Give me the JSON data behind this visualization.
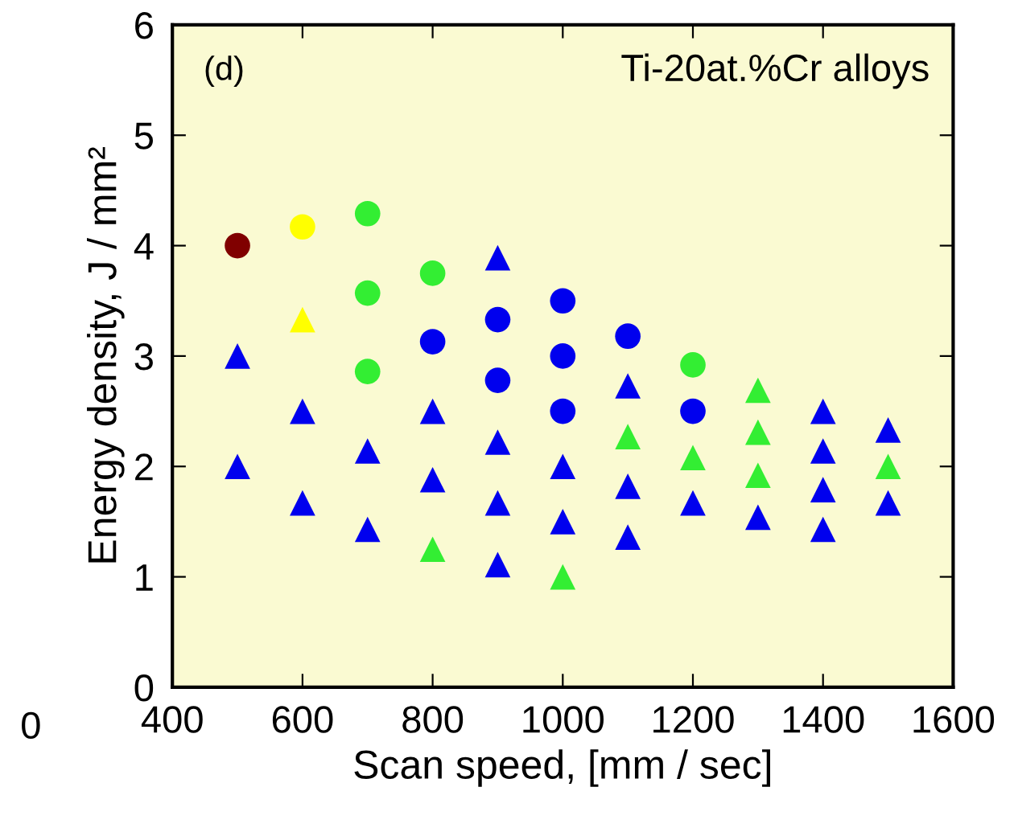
{
  "chart_data": {
    "type": "scatter",
    "xlabel": "Scan speed, [mm / sec]",
    "ylabel": "Energy density, J / mm²",
    "xlim": [
      400,
      1600
    ],
    "xticks": [
      400,
      600,
      800,
      1000,
      1200,
      1400,
      1600
    ],
    "ylim": [
      0,
      6
    ],
    "yticks": [
      0,
      1,
      2,
      3,
      4,
      5,
      6
    ],
    "grid": false,
    "legend": false,
    "annotations": [
      "(d)",
      "Ti-20at.%Cr alloys",
      "0"
    ],
    "series": [
      {
        "color": "#800000",
        "marker": "circle",
        "x": [
          500
        ],
        "values": [
          4.0
        ]
      },
      {
        "color": "#ffff00",
        "marker": "circle",
        "x": [
          600
        ],
        "values": [
          4.17
        ]
      },
      {
        "color": "#ffff00",
        "marker": "triangle",
        "x": [
          600
        ],
        "values": [
          3.33
        ]
      },
      {
        "color": "#33ee33",
        "marker": "circle",
        "x": [
          700,
          700,
          700,
          800,
          1200
        ],
        "values": [
          4.29,
          3.57,
          2.86,
          3.75,
          2.92
        ]
      },
      {
        "color": "#33ee33",
        "marker": "triangle",
        "x": [
          800,
          1000,
          1100,
          1200,
          1300,
          1300,
          1300,
          1500
        ],
        "values": [
          1.25,
          1.0,
          2.27,
          2.08,
          2.69,
          2.31,
          1.92,
          2.0
        ]
      },
      {
        "color": "#0000ee",
        "marker": "circle",
        "x": [
          800,
          900,
          900,
          1000,
          1000,
          1000,
          1100,
          1200
        ],
        "values": [
          3.13,
          3.33,
          2.78,
          3.5,
          3.0,
          2.5,
          3.18,
          2.5
        ]
      },
      {
        "color": "#0000ee",
        "marker": "triangle",
        "x": [
          500,
          500,
          600,
          600,
          700,
          700,
          800,
          800,
          900,
          900,
          900,
          900,
          1000,
          1000,
          1100,
          1100,
          1100,
          1200,
          1300,
          1400,
          1400,
          1400,
          1400,
          1500,
          1500
        ],
        "values": [
          3.0,
          2.0,
          2.5,
          1.67,
          2.14,
          1.43,
          2.5,
          1.88,
          3.89,
          2.22,
          1.67,
          1.11,
          2.0,
          1.5,
          2.73,
          1.82,
          1.36,
          1.67,
          1.54,
          2.5,
          2.14,
          1.79,
          1.43,
          2.33,
          1.67
        ]
      }
    ]
  }
}
